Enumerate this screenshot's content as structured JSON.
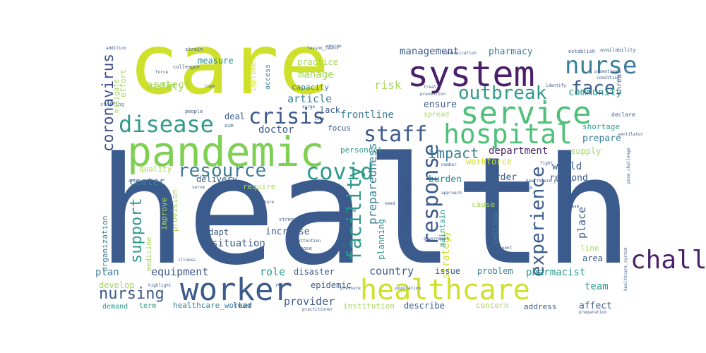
{
  "background_color": "#ffffff",
  "palette": [
    "#3b5b8c",
    "#cfe02a",
    "#7fcf55",
    "#4fc07a",
    "#2f9a8c",
    "#3c7f98",
    "#3e4f88",
    "#4a1f6b",
    "#6b2e79",
    "#a7d75a",
    "#1f8a8c",
    "#5b3c8c"
  ],
  "words": [
    "health",
    "care",
    "pandemic",
    "system",
    "service",
    "hospital",
    "healthcare",
    "worker",
    "nurse",
    "disease",
    "staff",
    "crisis",
    "covid",
    "resource",
    "outbreak",
    "face",
    "challenge",
    "response",
    "facility",
    "experience",
    "support",
    "nursing",
    "impact",
    "management",
    "pharmacy",
    "coronavirus",
    "protect",
    "safety",
    "measure",
    "manage",
    "article",
    "risk",
    "community",
    "frontline",
    "doctor",
    "ensure",
    "department",
    "prepare",
    "shortage",
    "supply",
    "world",
    "respond",
    "center",
    "quality",
    "delivery",
    "infection",
    "burden",
    "workforce",
    "preparedness",
    "planning",
    "order",
    "strategy",
    "maintain",
    "equipment",
    "plan",
    "role",
    "disaster",
    "country",
    "issue",
    "problem",
    "pharmacist",
    "team",
    "area",
    "affect",
    "address",
    "concern",
    "describe",
    "institution",
    "provider",
    "epidemic",
    "situation",
    "adapt",
    "increase",
    "develop",
    "organization",
    "medicine",
    "provision",
    "improve",
    "require",
    "cause",
    "place",
    "line",
    "setting",
    "personnel",
    "lead",
    "term",
    "demand",
    "healthcare_worker",
    "capacity",
    "practice",
    "implement",
    "access",
    "deal",
    "lack",
    "focus",
    "spread",
    "effort",
    "mitigate",
    "staffing",
    "threat",
    "establish",
    "availability",
    "emerge",
    "communication",
    "addition",
    "strain",
    "colleague",
    "force",
    "cope",
    "aim",
    "people",
    "identify",
    "prevention",
    "life",
    "duty",
    "highlight",
    "illness",
    "pose",
    "attention",
    "approach",
    "population",
    "disruption",
    "government",
    "lesson_learn",
    "infrastructure",
    "share",
    "strengthen",
    "fight",
    "number",
    "serve",
    "declare",
    "promotion",
    "condition",
    "healthcare_provider",
    "healthcare_system",
    "pose_challenge",
    "release",
    "preparation",
    "prevent",
    "practitioner",
    "pressure",
    "surge",
    "ventilator",
    "mask",
    "treat",
    "need",
    "year",
    "time"
  ]
}
